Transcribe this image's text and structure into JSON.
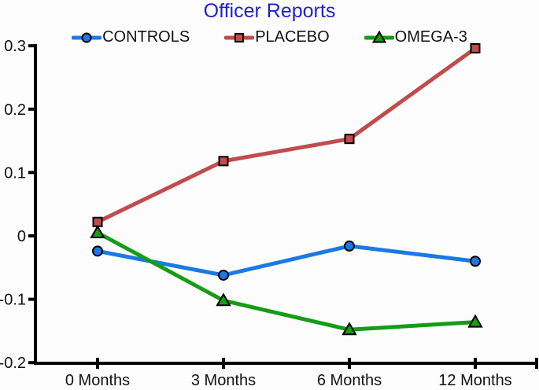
{
  "chart_data": {
    "type": "line",
    "title": "Officer Reports",
    "title_color": "#2121cc",
    "categories": [
      "0 Months",
      "3 Months",
      "6 Months",
      "12 Months"
    ],
    "xlabel": "",
    "ylabel": "",
    "ylim": [
      -0.2,
      0.3
    ],
    "y_ticks": [
      "0.3",
      "0.2",
      "0.1",
      "0",
      "-0.1",
      "-0.2"
    ],
    "grid": false,
    "legend_position": "top",
    "axis_color": "#000000",
    "series": [
      {
        "name": "CONTROLS",
        "color": "#1b79e6",
        "marker": "circle",
        "values": [
          -0.024,
          -0.062,
          -0.016,
          -0.04
        ]
      },
      {
        "name": "PLACEBO",
        "color": "#c04c4e",
        "marker": "square",
        "values": [
          0.022,
          0.118,
          0.153,
          0.296
        ]
      },
      {
        "name": "OMEGA-3",
        "color": "#169c16",
        "marker": "triangle",
        "values": [
          0.005,
          -0.102,
          -0.148,
          -0.136
        ]
      }
    ]
  }
}
